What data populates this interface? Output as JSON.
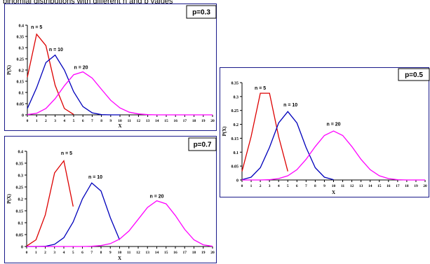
{
  "chart_data": [
    {
      "type": "line",
      "title": "p=0.3",
      "xlabel": "X",
      "ylabel": "P(X)",
      "xlim": [
        0,
        20
      ],
      "ylim": [
        0,
        0.4
      ],
      "x_ticks": [
        0,
        1,
        2,
        3,
        4,
        5,
        6,
        7,
        8,
        9,
        10,
        11,
        12,
        13,
        14,
        15,
        16,
        17,
        18,
        19,
        20
      ],
      "y_ticks": [
        "0",
        "0.05",
        "0.1",
        "0.15",
        "0.2",
        "0.25",
        "0.3",
        "0.35",
        "0.4"
      ],
      "series": [
        {
          "name": "n = 5",
          "color": "#dd0000",
          "x": [
            0,
            1,
            2,
            3,
            4,
            5
          ],
          "values": [
            0.168,
            0.36,
            0.309,
            0.132,
            0.028,
            0.002
          ]
        },
        {
          "name": "n = 10",
          "color": "#0000bb",
          "x": [
            0,
            1,
            2,
            3,
            4,
            5,
            6,
            7,
            8,
            9,
            10
          ],
          "values": [
            0.028,
            0.121,
            0.233,
            0.267,
            0.2,
            0.103,
            0.037,
            0.009,
            0.001,
            0.0,
            0.0
          ]
        },
        {
          "name": "n = 20",
          "color": "#ff00ff",
          "x": [
            0,
            1,
            2,
            3,
            4,
            5,
            6,
            7,
            8,
            9,
            10,
            11,
            12,
            13,
            14,
            15,
            16,
            17,
            18,
            19,
            20
          ],
          "values": [
            0.001,
            0.007,
            0.028,
            0.072,
            0.13,
            0.179,
            0.192,
            0.164,
            0.114,
            0.065,
            0.031,
            0.012,
            0.004,
            0.001,
            0,
            0,
            0,
            0,
            0,
            0,
            0
          ]
        }
      ]
    },
    {
      "type": "line",
      "title": "p=0.5",
      "xlabel": "X",
      "ylabel": "P(X)",
      "xlim": [
        0,
        20
      ],
      "ylim": [
        0,
        0.35
      ],
      "x_ticks": [
        0,
        1,
        2,
        3,
        4,
        5,
        6,
        7,
        8,
        9,
        10,
        11,
        12,
        13,
        14,
        15,
        16,
        17,
        18,
        19,
        20
      ],
      "y_ticks": [
        "0",
        "0.05",
        "0.1",
        "0.15",
        "0.2",
        "0.25",
        "0.3",
        "0.35"
      ],
      "series": [
        {
          "name": "n = 5",
          "color": "#dd0000",
          "x": [
            0,
            1,
            2,
            3,
            4,
            5
          ],
          "values": [
            0.031,
            0.156,
            0.312,
            0.312,
            0.156,
            0.031
          ]
        },
        {
          "name": "n = 10",
          "color": "#0000bb",
          "x": [
            0,
            1,
            2,
            3,
            4,
            5,
            6,
            7,
            8,
            9,
            10
          ],
          "values": [
            0.001,
            0.01,
            0.044,
            0.117,
            0.205,
            0.246,
            0.205,
            0.117,
            0.044,
            0.01,
            0.001
          ]
        },
        {
          "name": "n = 20",
          "color": "#ff00ff",
          "x": [
            0,
            1,
            2,
            3,
            4,
            5,
            6,
            7,
            8,
            9,
            10,
            11,
            12,
            13,
            14,
            15,
            16,
            17,
            18,
            19,
            20
          ],
          "values": [
            0,
            0,
            0,
            0.001,
            0.005,
            0.015,
            0.037,
            0.074,
            0.12,
            0.16,
            0.176,
            0.16,
            0.12,
            0.074,
            0.037,
            0.015,
            0.005,
            0.001,
            0,
            0,
            0
          ]
        }
      ]
    },
    {
      "type": "line",
      "title": "p=0.7",
      "xlabel": "X",
      "ylabel": "P(X)",
      "xlim": [
        0,
        20
      ],
      "ylim": [
        0,
        0.4
      ],
      "x_ticks": [
        0,
        1,
        2,
        3,
        4,
        5,
        6,
        7,
        8,
        9,
        10,
        11,
        12,
        13,
        14,
        15,
        16,
        17,
        18,
        19,
        20
      ],
      "y_ticks": [
        "0",
        "0.05",
        "0.1",
        "0.15",
        "0.2",
        "0.25",
        "0.3",
        "0.35",
        "0.4"
      ],
      "series": [
        {
          "name": "n = 5",
          "color": "#dd0000",
          "x": [
            0,
            1,
            2,
            3,
            4,
            5
          ],
          "values": [
            0.002,
            0.028,
            0.132,
            0.309,
            0.36,
            0.168
          ]
        },
        {
          "name": "n = 10",
          "color": "#0000bb",
          "x": [
            0,
            1,
            2,
            3,
            4,
            5,
            6,
            7,
            8,
            9,
            10
          ],
          "values": [
            0.0,
            0.0,
            0.001,
            0.009,
            0.037,
            0.103,
            0.2,
            0.267,
            0.233,
            0.121,
            0.028
          ]
        },
        {
          "name": "n = 20",
          "color": "#ff00ff",
          "x": [
            0,
            1,
            2,
            3,
            4,
            5,
            6,
            7,
            8,
            9,
            10,
            11,
            12,
            13,
            14,
            15,
            16,
            17,
            18,
            19,
            20
          ],
          "values": [
            0,
            0,
            0,
            0,
            0,
            0,
            0,
            0.001,
            0.004,
            0.012,
            0.031,
            0.065,
            0.114,
            0.164,
            0.192,
            0.179,
            0.13,
            0.072,
            0.028,
            0.007,
            0.001
          ]
        }
      ]
    }
  ]
}
